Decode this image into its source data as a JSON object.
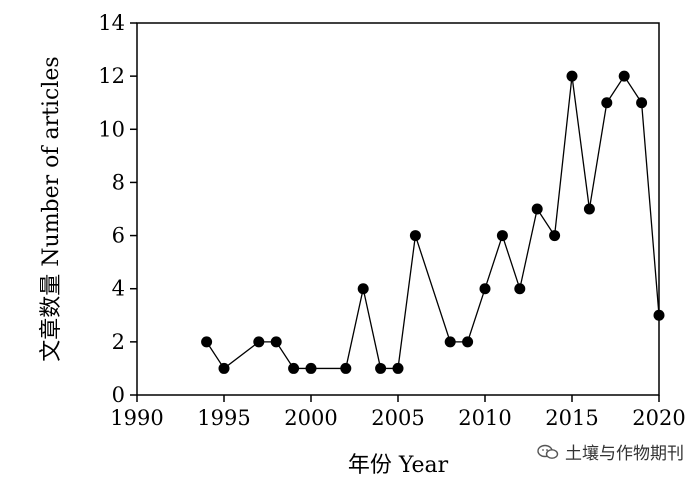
{
  "chart_data": {
    "type": "line",
    "title": "",
    "xlabel": "年份 Year",
    "ylabel": "文章数量 Number of articles",
    "xlim": [
      1990,
      2020
    ],
    "ylim": [
      0,
      14
    ],
    "xticks": [
      1990,
      1995,
      2000,
      2005,
      2010,
      2015,
      2020
    ],
    "yticks": [
      0,
      2,
      4,
      6,
      8,
      10,
      12,
      14
    ],
    "grid": false,
    "legend": "none",
    "marker": "filled-circle",
    "series": [
      {
        "x": [
          1994,
          1995,
          1997,
          1998,
          1999,
          2000,
          2002,
          2003,
          2004,
          2005,
          2006,
          2008,
          2009,
          2010,
          2011,
          2012,
          2013,
          2014,
          2015,
          2016,
          2017,
          2018,
          2019,
          2020
        ],
        "values": [
          2,
          1,
          2,
          2,
          1,
          1,
          1,
          4,
          1,
          1,
          6,
          2,
          2,
          4,
          6,
          4,
          7,
          6,
          12,
          7,
          11,
          12,
          11,
          3
        ]
      }
    ],
    "colors": {
      "line": "#000000",
      "marker": "#000000"
    }
  },
  "watermark": {
    "text": "土壤与作物期刊",
    "icon": "wechat-icon"
  }
}
